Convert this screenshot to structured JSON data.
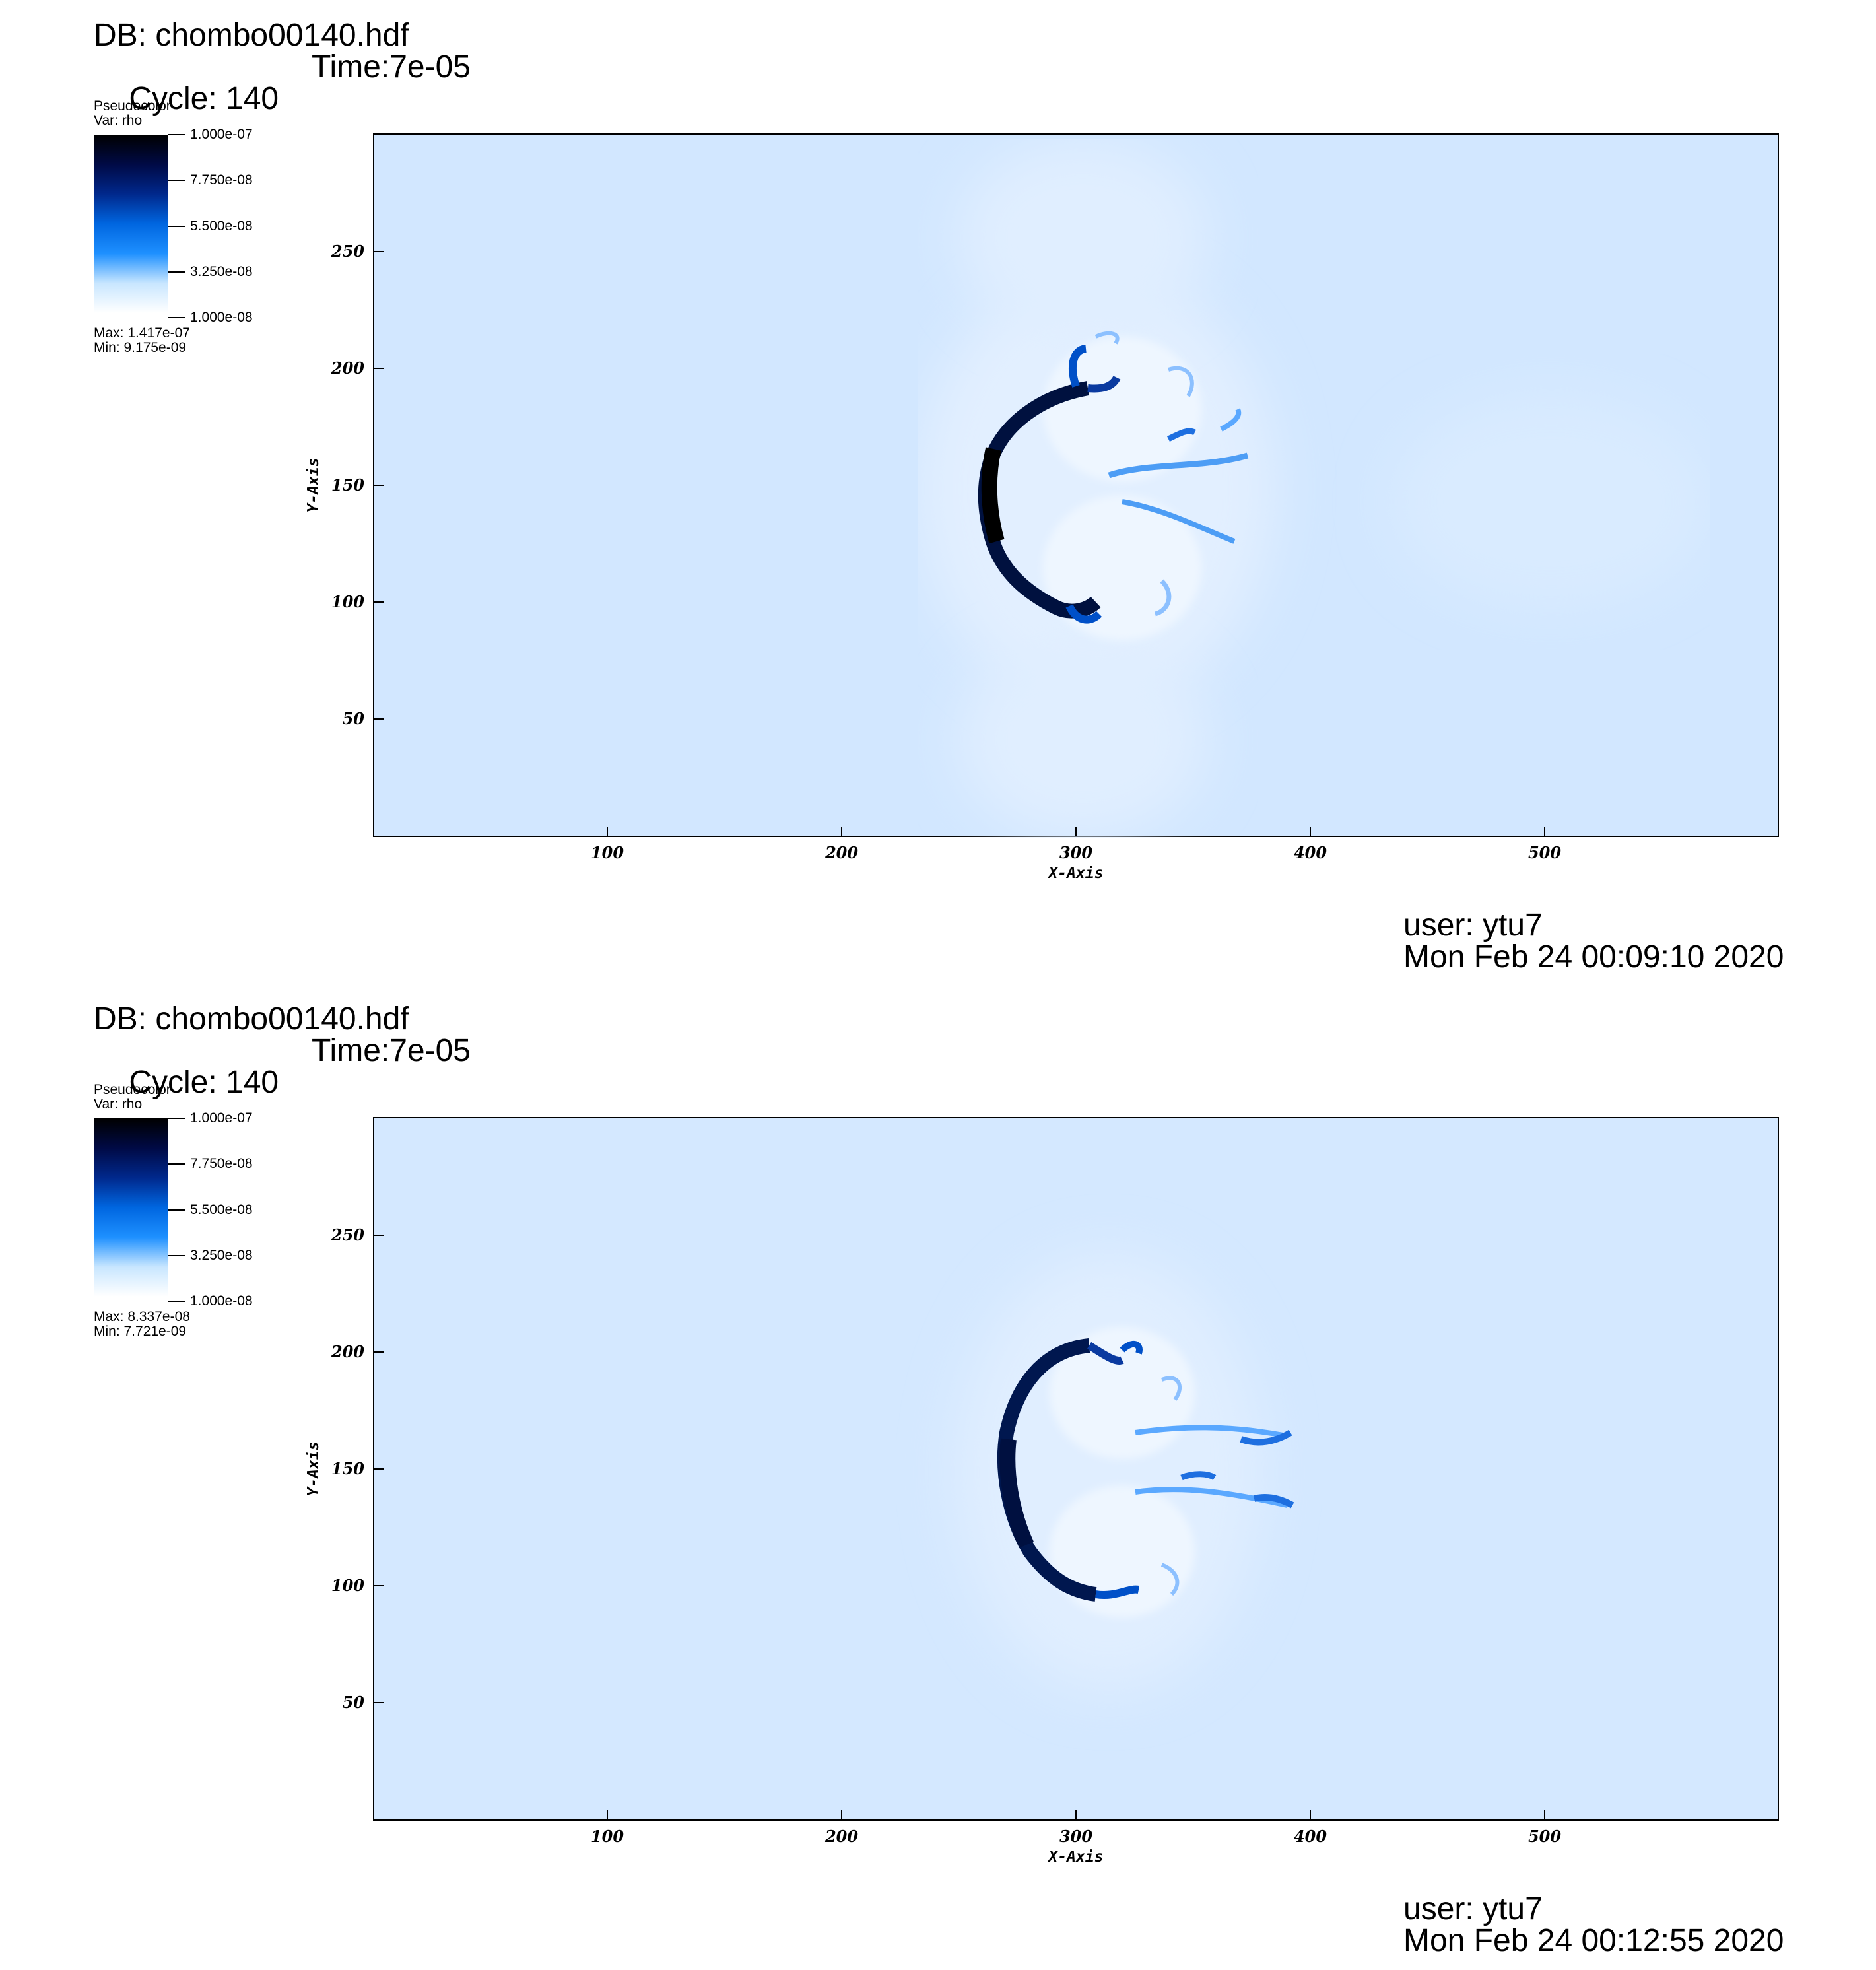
{
  "chart_data": [
    {
      "type": "heatmap",
      "db_label": "DB: chombo00140.hdf",
      "cycle_label": "Cycle: 140",
      "time_label": "Time:7e-05",
      "plot_type": "Pseudocolor",
      "var_label": "Var: rho",
      "colorbar": {
        "ticks": [
          "1.000e-07",
          "7.750e-08",
          "5.500e-08",
          "3.250e-08",
          "1.000e-08"
        ],
        "range": [
          1e-08,
          1e-07
        ],
        "colors": [
          "#000000",
          "#000a45",
          "#00288c",
          "#0066e0",
          "#1e90ff",
          "#c8e6ff",
          "#ffffff"
        ]
      },
      "max_label": "Max:  1.417e-07",
      "min_label": "Min:  9.175e-09",
      "xlabel": "X-Axis",
      "ylabel": "Y-Axis",
      "xlim": [
        0,
        600
      ],
      "ylim": [
        0,
        300
      ],
      "xticks": [
        "100",
        "200",
        "300",
        "400",
        "500"
      ],
      "yticks": [
        "50",
        "100",
        "150",
        "200",
        "250"
      ],
      "background_color": "#d2e7ff",
      "user_label": "user: ytu7",
      "date_label": "Mon Feb 24 00:09:10 2020"
    },
    {
      "type": "heatmap",
      "db_label": "DB: chombo00140.hdf",
      "cycle_label": "Cycle: 140",
      "time_label": "Time:7e-05",
      "plot_type": "Pseudocolor",
      "var_label": "Var: rho",
      "colorbar": {
        "ticks": [
          "1.000e-07",
          "7.750e-08",
          "5.500e-08",
          "3.250e-08",
          "1.000e-08"
        ],
        "range": [
          1e-08,
          1e-07
        ],
        "colors": [
          "#000000",
          "#000a45",
          "#00288c",
          "#0066e0",
          "#1e90ff",
          "#c8e6ff",
          "#ffffff"
        ]
      },
      "max_label": "Max:  8.337e-08",
      "min_label": "Min:  7.721e-09",
      "xlabel": "X-Axis",
      "ylabel": "Y-Axis",
      "xlim": [
        0,
        600
      ],
      "ylim": [
        0,
        300
      ],
      "xticks": [
        "100",
        "200",
        "300",
        "400",
        "500"
      ],
      "yticks": [
        "50",
        "100",
        "150",
        "200",
        "250"
      ],
      "background_color": "#d4e8ff",
      "user_label": "user: ytu7",
      "date_label": "Mon Feb 24 00:12:55 2020"
    }
  ]
}
